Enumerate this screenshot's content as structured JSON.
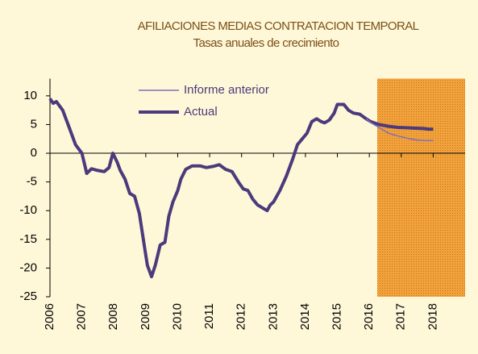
{
  "chart_data": {
    "type": "line",
    "title": "AFILIACIONES MEDIAS CONTRATACION TEMPORAL",
    "subtitle": "Tasas anuales de crecimiento",
    "xlim": [
      2006,
      2019
    ],
    "xticks": [
      2006,
      2007,
      2008,
      2009,
      2010,
      2011,
      2012,
      2013,
      2014,
      2015,
      2016,
      2017,
      2018
    ],
    "ylim": [
      -25,
      13
    ],
    "yticks": [
      -25,
      -20,
      -15,
      -10,
      -5,
      0,
      5,
      10
    ],
    "shaded_x": [
      2016.25,
      2019
    ],
    "shade_color": "#f2a23c",
    "series": [
      {
        "name": "Informe anterior",
        "color": "#7f6fb8",
        "width": 1.5,
        "x": [
          2015.9,
          2016.05,
          2016.3,
          2016.6,
          2016.9,
          2017.2,
          2017.5,
          2017.75,
          2018.0
        ],
        "values": [
          6.0,
          5.3,
          4.5,
          3.5,
          3.0,
          2.6,
          2.3,
          2.2,
          2.2
        ]
      },
      {
        "name": "Actual",
        "color": "#4b3a7c",
        "width": 4,
        "x": [
          2006.0,
          2006.1,
          2006.2,
          2006.4,
          2006.6,
          2006.8,
          2007.0,
          2007.15,
          2007.3,
          2007.5,
          2007.7,
          2007.85,
          2007.97,
          2008.1,
          2008.2,
          2008.35,
          2008.5,
          2008.65,
          2008.8,
          2008.95,
          2009.05,
          2009.18,
          2009.3,
          2009.45,
          2009.6,
          2009.72,
          2009.85,
          2010.0,
          2010.1,
          2010.25,
          2010.45,
          2010.7,
          2010.9,
          2011.1,
          2011.3,
          2011.5,
          2011.7,
          2011.9,
          2012.05,
          2012.2,
          2012.35,
          2012.5,
          2012.65,
          2012.8,
          2012.9,
          2013.0,
          2013.2,
          2013.4,
          2013.6,
          2013.75,
          2013.9,
          2014.05,
          2014.2,
          2014.35,
          2014.5,
          2014.6,
          2014.75,
          2014.9,
          2015.0,
          2015.2,
          2015.35,
          2015.5,
          2015.7,
          2015.9,
          2016.05,
          2016.3,
          2016.6,
          2016.9,
          2017.3,
          2017.7,
          2017.85,
          2018.0
        ],
        "values": [
          9.5,
          8.7,
          9.0,
          7.5,
          4.5,
          1.5,
          0.0,
          -3.5,
          -2.7,
          -3.0,
          -3.2,
          -2.5,
          0.0,
          -1.5,
          -3.0,
          -4.5,
          -7.0,
          -7.5,
          -10.5,
          -16.0,
          -19.5,
          -21.5,
          -19.5,
          -16.0,
          -15.5,
          -11.0,
          -8.5,
          -6.5,
          -4.5,
          -2.8,
          -2.2,
          -2.2,
          -2.5,
          -2.3,
          -2.0,
          -2.8,
          -3.2,
          -5.0,
          -6.2,
          -6.5,
          -8.0,
          -9.0,
          -9.5,
          -10.0,
          -9.0,
          -8.5,
          -6.5,
          -4.0,
          -1.0,
          1.5,
          2.5,
          3.5,
          5.5,
          6.0,
          5.5,
          5.3,
          5.8,
          7.0,
          8.5,
          8.5,
          7.5,
          7.0,
          6.8,
          6.0,
          5.5,
          5.0,
          4.7,
          4.5,
          4.4,
          4.3,
          4.2,
          4.2
        ]
      }
    ]
  }
}
